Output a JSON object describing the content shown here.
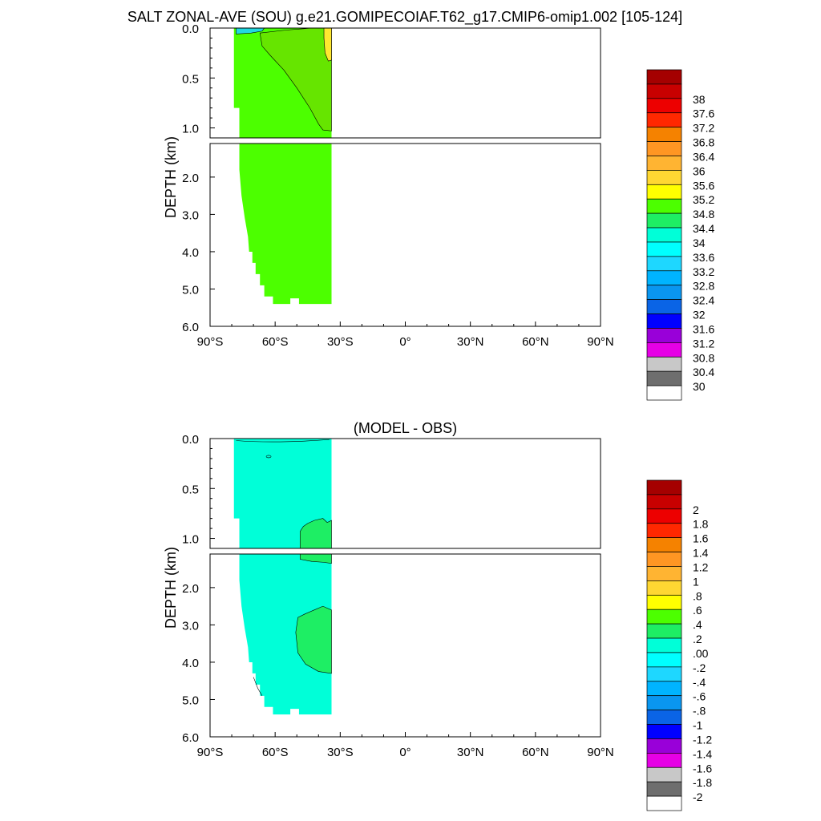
{
  "title": "SALT ZONAL-AVE (SOU) g.e21.GOMIPECOIAF.T62_g17.CMIP6-omip1.002 [105-124]",
  "chart_data": [
    {
      "type": "heatmap",
      "panel": "model",
      "title": "",
      "ylabel": "DEPTH (km)",
      "xlabel": "",
      "xlim": [
        -90,
        90
      ],
      "upper_ylim": [
        0.0,
        1.1
      ],
      "lower_ylim": [
        1.1,
        6.0
      ],
      "upper_yticks": [
        "0.0",
        "0.5",
        "1.0"
      ],
      "lower_yticks": [
        "2.0",
        "3.0",
        "4.0",
        "5.0",
        "6.0"
      ],
      "xticks": [
        "90°S",
        "60°S",
        "30°S",
        "0°",
        "30°N",
        "60°N",
        "90°N"
      ],
      "colorbar_levels": [
        "30",
        "30.4",
        "30.8",
        "31.2",
        "31.6",
        "32",
        "32.4",
        "32.8",
        "33.2",
        "33.6",
        "34",
        "34.4",
        "34.8",
        "35.2",
        "35.6",
        "36",
        "36.4",
        "36.8",
        "37.2",
        "37.6",
        "38"
      ],
      "data_coverage_lat": [
        -79,
        -34
      ],
      "background_value_range": [
        34.4,
        34.8
      ],
      "features": [
        {
          "region": "upper ocean south of 45S",
          "value_range": [
            34.4,
            34.8
          ]
        },
        {
          "region": "tongue 0-1.0 km from 70S to 35S",
          "value_range": [
            34.0,
            34.4
          ]
        },
        {
          "region": "surface near 70S",
          "value_range": [
            33.6,
            34.0
          ]
        },
        {
          "region": "surface near 36S",
          "value_range": [
            34.8,
            35.2
          ]
        }
      ]
    },
    {
      "type": "heatmap",
      "panel": "difference",
      "title": "(MODEL - OBS)",
      "ylabel": "DEPTH (km)",
      "xlabel": "",
      "xlim": [
        -90,
        90
      ],
      "upper_ylim": [
        0.0,
        1.1
      ],
      "lower_ylim": [
        1.1,
        6.0
      ],
      "upper_yticks": [
        "0.0",
        "0.5",
        "1.0"
      ],
      "lower_yticks": [
        "2.0",
        "3.0",
        "4.0",
        "5.0",
        "6.0"
      ],
      "xticks": [
        "90°S",
        "60°S",
        "30°S",
        "0°",
        "30°N",
        "60°N",
        "90°N"
      ],
      "colorbar_levels": [
        "-2",
        "-1.8",
        "-1.6",
        "-1.4",
        "-1.2",
        "-1",
        "-.8",
        "-.6",
        "-.4",
        "-.2",
        ".00",
        ".2",
        ".4",
        ".6",
        ".8",
        "1",
        "1.2",
        "1.4",
        "1.6",
        "1.8",
        "2"
      ],
      "data_coverage_lat": [
        -79,
        -34
      ],
      "background_value_range": [
        -0.2,
        0.0
      ],
      "features": [
        {
          "region": "0.8-1.1 km near 45-35S",
          "value_range": [
            0.0,
            0.2
          ]
        },
        {
          "region": "1.1-1.3 km near 45-35S",
          "value_range": [
            0.0,
            0.2
          ]
        },
        {
          "region": "2.5-4.3 km near 52-35S",
          "value_range": [
            0.0,
            0.2
          ]
        }
      ]
    }
  ],
  "colors": {
    "model_main": "#4cff00",
    "model_tongue": "#66e500",
    "model_surface_fresh": "#22d8e0",
    "model_surface_salty": "#ffe830",
    "diff_main": "#00ffd8",
    "diff_positive": "#1eee64",
    "diff_surface": "#22ffc8"
  },
  "colorbar_colors": [
    "#ffffff",
    "#6e6e6e",
    "#c8c8c8",
    "#e600e6",
    "#9900d9",
    "#0000ff",
    "#0a64e6",
    "#0a96f0",
    "#00b4ff",
    "#1ed7ff",
    "#00ffff",
    "#00ffd8",
    "#1eee64",
    "#4cff00",
    "#ffff00",
    "#ffd732",
    "#ffb432",
    "#ff9623",
    "#f58200",
    "#ff2800",
    "#ed0000",
    "#c80000",
    "#a50000"
  ]
}
